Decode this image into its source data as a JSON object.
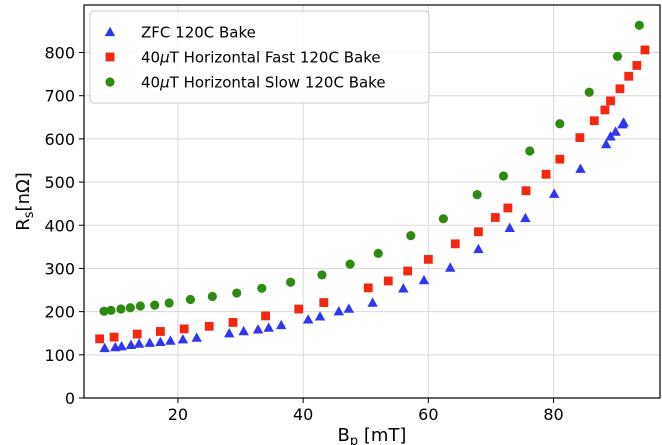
{
  "chart_data": {
    "type": "scatter",
    "xlabel": "B_p [mT]",
    "ylabel": "R_s[nΩ]",
    "xlim": [
      5,
      97
    ],
    "ylim": [
      0,
      910
    ],
    "xticks": [
      20,
      40,
      60,
      80
    ],
    "yticks": [
      0,
      100,
      200,
      300,
      400,
      500,
      600,
      700,
      800
    ],
    "grid": true,
    "legend_position": "top-left",
    "series": [
      {
        "name": "ZFC 120C Bake",
        "marker": "triangle",
        "color": "#2f35f2",
        "points": [
          [
            8.3,
            116
          ],
          [
            10,
            118
          ],
          [
            11,
            120
          ],
          [
            12.5,
            123
          ],
          [
            13.8,
            126
          ],
          [
            15.5,
            128
          ],
          [
            17.2,
            130
          ],
          [
            18.8,
            133
          ],
          [
            20.8,
            136
          ],
          [
            23,
            140
          ],
          [
            28.2,
            150
          ],
          [
            30.5,
            155
          ],
          [
            32.8,
            159
          ],
          [
            34.5,
            163
          ],
          [
            36.5,
            169
          ],
          [
            40.8,
            182
          ],
          [
            42.7,
            189
          ],
          [
            45.7,
            201
          ],
          [
            47.3,
            207
          ],
          [
            51.1,
            221
          ],
          [
            56,
            254
          ],
          [
            59.3,
            273
          ],
          [
            63.5,
            302
          ],
          [
            68,
            345
          ],
          [
            73,
            394
          ],
          [
            75.5,
            417
          ],
          [
            80.1,
            473
          ],
          [
            84.3,
            531
          ],
          [
            88.4,
            588
          ],
          [
            89.1,
            606
          ],
          [
            89.9,
            617
          ],
          [
            91,
            634
          ],
          [
            91.2,
            638
          ]
        ]
      },
      {
        "name": "40μT Horizontal Fast 120C Bake",
        "marker": "square",
        "color": "#f5270f",
        "points": [
          [
            7.5,
            137
          ],
          [
            9.8,
            141
          ],
          [
            13.5,
            148
          ],
          [
            17.2,
            154
          ],
          [
            21,
            160
          ],
          [
            25,
            166
          ],
          [
            28.8,
            175
          ],
          [
            34,
            190
          ],
          [
            39.3,
            206
          ],
          [
            43.3,
            221
          ],
          [
            50.4,
            255
          ],
          [
            53.6,
            271
          ],
          [
            56.7,
            294
          ],
          [
            60,
            321
          ],
          [
            64.3,
            357
          ],
          [
            68,
            385
          ],
          [
            70.7,
            418
          ],
          [
            72.7,
            440
          ],
          [
            75.6,
            480
          ],
          [
            78.8,
            518
          ],
          [
            81,
            553
          ],
          [
            84.2,
            603
          ],
          [
            86.5,
            642
          ],
          [
            88.2,
            667
          ],
          [
            89.1,
            688
          ],
          [
            90.6,
            716
          ],
          [
            92,
            745
          ],
          [
            93.3,
            770
          ],
          [
            94.6,
            806
          ]
        ]
      },
      {
        "name": "40μT Horizontal Slow 120C Bake",
        "marker": "circle",
        "color": "#2e8b12",
        "points": [
          [
            8.2,
            201
          ],
          [
            9.3,
            203
          ],
          [
            10.9,
            206
          ],
          [
            12.4,
            209
          ],
          [
            14,
            213
          ],
          [
            16.3,
            215
          ],
          [
            18.6,
            220
          ],
          [
            22,
            228
          ],
          [
            25.5,
            235
          ],
          [
            29.4,
            243
          ],
          [
            33.4,
            254
          ],
          [
            38,
            268
          ],
          [
            43,
            285
          ],
          [
            47.5,
            310
          ],
          [
            52,
            335
          ],
          [
            57.2,
            376
          ],
          [
            62.4,
            415
          ],
          [
            67.8,
            471
          ],
          [
            72,
            514
          ],
          [
            76.2,
            572
          ],
          [
            81,
            635
          ],
          [
            85.7,
            708
          ],
          [
            90.2,
            791
          ],
          [
            93.7,
            863
          ]
        ]
      }
    ]
  }
}
